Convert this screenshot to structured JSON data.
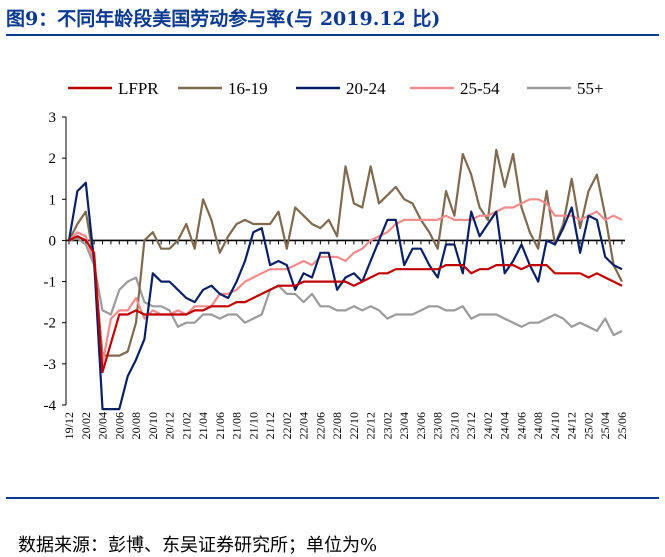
{
  "title": "图9：不同年龄段美国劳动参与率(与 2019.12 比)",
  "source": "数据来源：彭博、东吴证券研究所；单位为%",
  "chart_data": {
    "type": "line",
    "ylim": [
      -4,
      3
    ],
    "yticks": [
      -4,
      -3,
      -2,
      -1,
      0,
      1,
      2,
      3
    ],
    "legend_position": "top",
    "x": [
      "19/12",
      "20/01",
      "20/02",
      "20/03",
      "20/04",
      "20/05",
      "20/06",
      "20/07",
      "20/08",
      "20/09",
      "20/10",
      "20/11",
      "20/12",
      "21/01",
      "21/02",
      "21/03",
      "21/04",
      "21/05",
      "21/06",
      "21/07",
      "21/08",
      "21/09",
      "21/10",
      "21/11",
      "21/12",
      "22/01",
      "22/02",
      "22/03",
      "22/04",
      "22/05",
      "22/06",
      "22/07",
      "22/08",
      "22/09",
      "22/10",
      "22/11",
      "22/12",
      "23/01",
      "23/02",
      "23/03",
      "23/04",
      "23/05",
      "23/06",
      "23/07",
      "23/08",
      "23/09",
      "23/10",
      "23/11",
      "23/12",
      "24/01",
      "24/02",
      "24/03",
      "24/04",
      "24/05",
      "24/06",
      "24/07",
      "24/08",
      "24/09",
      "24/10",
      "24/11",
      "24/12",
      "25/01",
      "25/02",
      "25/03",
      "25/04",
      "25/05",
      "25/06"
    ],
    "xtick_labels": [
      "19/12",
      "20/02",
      "20/04",
      "20/06",
      "20/08",
      "20/10",
      "20/12",
      "21/02",
      "21/04",
      "21/06",
      "21/08",
      "21/10",
      "21/12",
      "22/02",
      "22/04",
      "22/06",
      "22/08",
      "22/10",
      "22/12",
      "23/02",
      "23/04",
      "23/06",
      "23/08",
      "23/10",
      "23/12",
      "24/02",
      "24/04",
      "24/06",
      "24/08",
      "24/10",
      "24/12",
      "25/02",
      "25/04",
      "25/06"
    ],
    "series": [
      {
        "name": "LFPR",
        "color": "#c00000",
        "values": [
          0,
          0.1,
          0,
          -0.3,
          -3.2,
          -2.5,
          -1.8,
          -1.8,
          -1.7,
          -1.8,
          -1.8,
          -1.8,
          -1.8,
          -1.8,
          -1.8,
          -1.7,
          -1.7,
          -1.6,
          -1.6,
          -1.6,
          -1.5,
          -1.5,
          -1.4,
          -1.3,
          -1.2,
          -1.1,
          -1.1,
          -1.1,
          -1.0,
          -1.0,
          -1.0,
          -1.0,
          -1.0,
          -1.0,
          -1.1,
          -1.0,
          -0.9,
          -0.8,
          -0.8,
          -0.7,
          -0.7,
          -0.7,
          -0.7,
          -0.7,
          -0.7,
          -0.6,
          -0.6,
          -0.6,
          -0.8,
          -0.7,
          -0.7,
          -0.6,
          -0.6,
          -0.6,
          -0.7,
          -0.6,
          -0.6,
          -0.6,
          -0.8,
          -0.8,
          -0.8,
          -0.8,
          -0.9,
          -0.8,
          -0.9,
          -1.0,
          -1.1
        ]
      },
      {
        "name": "16-19",
        "color": "#7f6a4f",
        "values": [
          0,
          0.4,
          0.7,
          -0.5,
          -2.8,
          -2.8,
          -2.8,
          -2.7,
          -2.0,
          0,
          0.2,
          -0.2,
          -0.2,
          0,
          0.4,
          -0.2,
          1.0,
          0.5,
          -0.3,
          0.1,
          0.4,
          0.5,
          0.4,
          0.4,
          0.4,
          0.7,
          -0.2,
          0.8,
          0.6,
          0.4,
          0.3,
          0.5,
          0.1,
          1.8,
          0.9,
          0.8,
          1.8,
          0.9,
          1.1,
          1.3,
          1.0,
          0.9,
          0.5,
          0.2,
          -0.2,
          1.2,
          0.6,
          2.1,
          1.6,
          0.8,
          0.5,
          2.2,
          1.3,
          2.1,
          0.8,
          0.2,
          -0.2,
          1.2,
          -0.1,
          0.4,
          1.5,
          0.3,
          1.2,
          1.6,
          0.6,
          -0.6,
          -1.0
        ]
      },
      {
        "name": "20-24",
        "color": "#0a2064",
        "values": [
          0,
          1.2,
          1.4,
          -0.5,
          -4.1,
          -4.1,
          -4.1,
          -3.3,
          -2.9,
          -2.4,
          -0.8,
          -1.0,
          -1.0,
          -1.2,
          -1.4,
          -1.5,
          -1.2,
          -1.1,
          -1.3,
          -1.4,
          -1.0,
          -0.5,
          0.2,
          0.3,
          -0.6,
          -0.5,
          -0.6,
          -1.2,
          -0.8,
          -0.9,
          -0.3,
          -0.3,
          -1.2,
          -0.9,
          -0.8,
          -1.0,
          -0.5,
          0,
          0.5,
          0.5,
          -0.6,
          -0.2,
          -0.2,
          -0.6,
          -0.9,
          -0.1,
          -0.1,
          -0.8,
          0.7,
          0.1,
          0.4,
          0.7,
          -0.8,
          -0.5,
          -0.1,
          -0.6,
          -1.0,
          0,
          -0.1,
          0.3,
          0.8,
          -0.3,
          0.6,
          0.5,
          -0.4,
          -0.6,
          -0.7
        ]
      },
      {
        "name": "25-54",
        "color": "#f28b8b",
        "values": [
          0,
          0.2,
          0.1,
          -0.5,
          -3.0,
          -1.9,
          -1.7,
          -1.7,
          -1.4,
          -1.9,
          -1.7,
          -1.8,
          -1.8,
          -1.7,
          -1.8,
          -1.6,
          -1.6,
          -1.6,
          -1.3,
          -1.3,
          -1.2,
          -1.0,
          -0.9,
          -0.8,
          -0.7,
          -0.7,
          -0.7,
          -0.6,
          -0.5,
          -0.6,
          -0.4,
          -0.4,
          -0.4,
          -0.5,
          -0.3,
          -0.2,
          0,
          0.1,
          0.2,
          0.4,
          0.5,
          0.5,
          0.5,
          0.5,
          0.5,
          0.6,
          0.5,
          0.5,
          0.5,
          0.6,
          0.6,
          0.7,
          0.8,
          0.8,
          0.9,
          1.0,
          1.0,
          0.9,
          0.6,
          0.6,
          0.6,
          0.5,
          0.6,
          0.7,
          0.5,
          0.6,
          0.5
        ]
      },
      {
        "name": "55+",
        "color": "#9b9b9b",
        "values": [
          0,
          0.05,
          -0.1,
          -0.6,
          -1.7,
          -1.8,
          -1.2,
          -1.0,
          -0.9,
          -1.5,
          -1.6,
          -1.6,
          -1.7,
          -2.1,
          -2.0,
          -2.0,
          -1.8,
          -1.8,
          -1.9,
          -1.8,
          -1.8,
          -2.0,
          -1.9,
          -1.8,
          -1.2,
          -1.1,
          -1.3,
          -1.3,
          -1.5,
          -1.3,
          -1.6,
          -1.6,
          -1.7,
          -1.7,
          -1.6,
          -1.7,
          -1.6,
          -1.7,
          -1.9,
          -1.8,
          -1.8,
          -1.8,
          -1.7,
          -1.6,
          -1.6,
          -1.7,
          -1.7,
          -1.6,
          -1.9,
          -1.8,
          -1.8,
          -1.8,
          -1.9,
          -2.0,
          -2.1,
          -2.0,
          -2.0,
          -1.9,
          -1.8,
          -1.9,
          -2.1,
          -2.0,
          -2.1,
          -2.2,
          -1.9,
          -2.3,
          -2.2
        ]
      }
    ]
  }
}
